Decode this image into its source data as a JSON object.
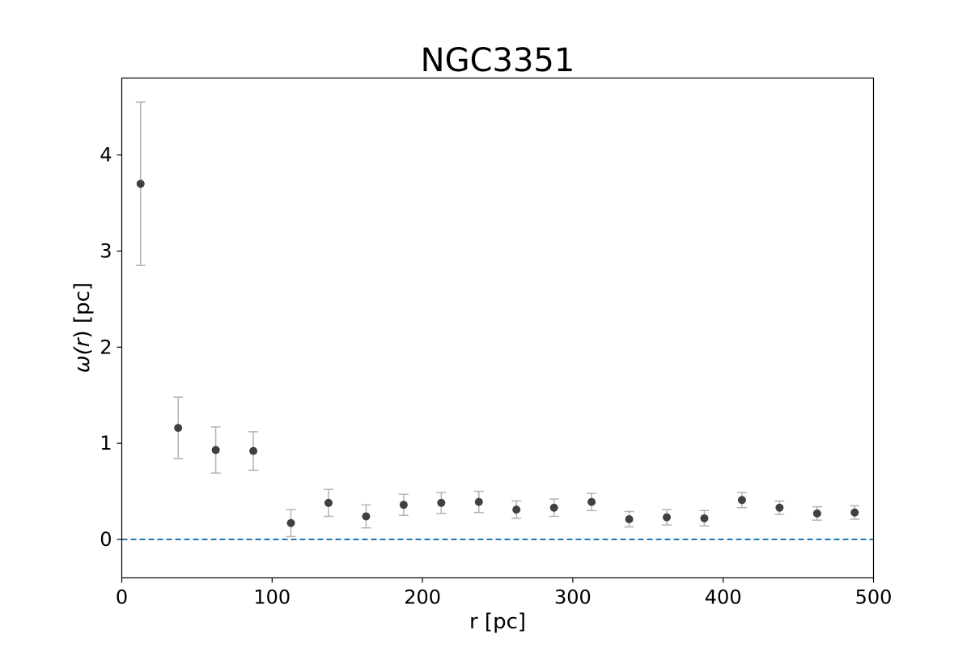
{
  "chart_data": {
    "type": "scatter",
    "title": "NGC3351",
    "xlabel": "r [pc]",
    "ylabel_symbol": "ω(",
    "ylabel_var": "r",
    "ylabel_rest": ") [pc]",
    "xlim": [
      0,
      500
    ],
    "ylim": [
      -0.4,
      4.8
    ],
    "xticks": [
      0,
      100,
      200,
      300,
      400,
      500
    ],
    "yticks": [
      0,
      1,
      2,
      3,
      4
    ],
    "grid": false,
    "reference_line": {
      "y": 0,
      "style": "dashed",
      "color": "#1f77b4"
    },
    "marker_color": "#404040",
    "errorbar_color": "#b3b3b3",
    "points": [
      {
        "x": 12.5,
        "y": 3.7,
        "err": 0.85
      },
      {
        "x": 37.5,
        "y": 1.16,
        "err": 0.32
      },
      {
        "x": 62.5,
        "y": 0.93,
        "err": 0.24
      },
      {
        "x": 87.5,
        "y": 0.92,
        "err": 0.2
      },
      {
        "x": 112.5,
        "y": 0.17,
        "err": 0.14
      },
      {
        "x": 137.5,
        "y": 0.38,
        "err": 0.14
      },
      {
        "x": 162.5,
        "y": 0.24,
        "err": 0.12
      },
      {
        "x": 187.5,
        "y": 0.36,
        "err": 0.11
      },
      {
        "x": 212.5,
        "y": 0.38,
        "err": 0.11
      },
      {
        "x": 237.5,
        "y": 0.39,
        "err": 0.11
      },
      {
        "x": 262.5,
        "y": 0.31,
        "err": 0.09
      },
      {
        "x": 287.5,
        "y": 0.33,
        "err": 0.09
      },
      {
        "x": 312.5,
        "y": 0.39,
        "err": 0.09
      },
      {
        "x": 337.5,
        "y": 0.21,
        "err": 0.08
      },
      {
        "x": 362.5,
        "y": 0.23,
        "err": 0.08
      },
      {
        "x": 387.5,
        "y": 0.22,
        "err": 0.08
      },
      {
        "x": 412.5,
        "y": 0.41,
        "err": 0.08
      },
      {
        "x": 437.5,
        "y": 0.33,
        "err": 0.07
      },
      {
        "x": 462.5,
        "y": 0.27,
        "err": 0.07
      },
      {
        "x": 487.5,
        "y": 0.28,
        "err": 0.07
      }
    ]
  }
}
